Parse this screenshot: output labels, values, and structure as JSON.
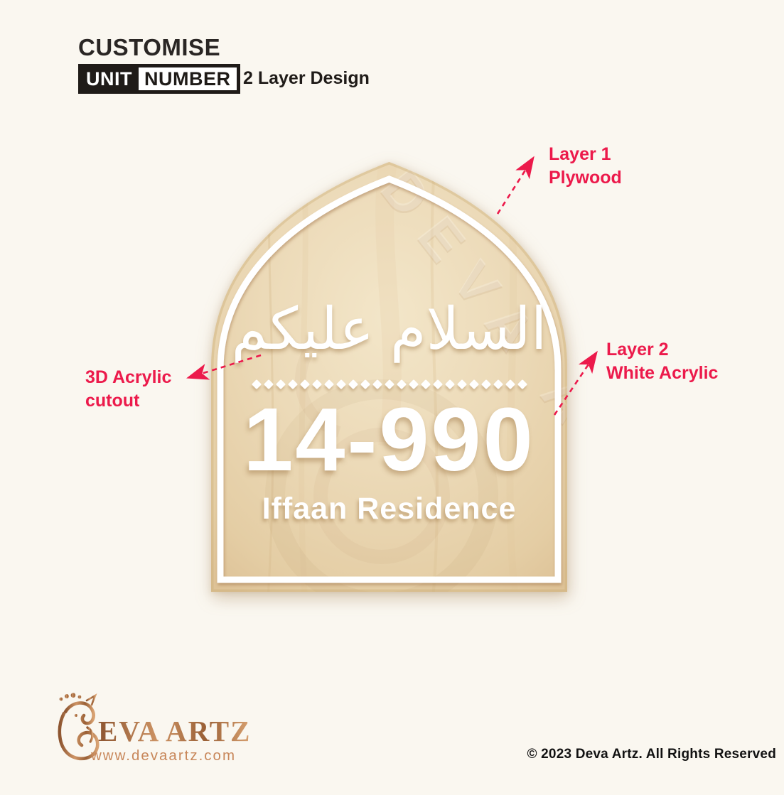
{
  "header": {
    "title": "CUSTOMISE",
    "badge_unit": "UNIT",
    "badge_number": "NUMBER",
    "subtitle": "2 Layer Design"
  },
  "plaque": {
    "arabic_greeting": "السلام عليكم",
    "unit_number": "14-990",
    "residence_name": "Iffaan Residence",
    "divider_diamond_count": 23,
    "watermark_text": "DEVA ARTZ",
    "wood_color": "#EAD6B2",
    "text_color": "#FFFFFF"
  },
  "annotations": {
    "accent_color": "#EC1A4B",
    "layer1_line1": "Layer 1",
    "layer1_line2": "Plywood",
    "layer2_line1": "Layer 2",
    "layer2_line2": "White Acrylic",
    "cutout_line1": "3D Acrylic",
    "cutout_line2": "cutout"
  },
  "footer": {
    "brand_name": "EVA ARTZ",
    "website": "www.devaartz.com",
    "copyright": "© 2023 Deva Artz. All Rights Reserved",
    "brand_color": "#B06F42"
  }
}
